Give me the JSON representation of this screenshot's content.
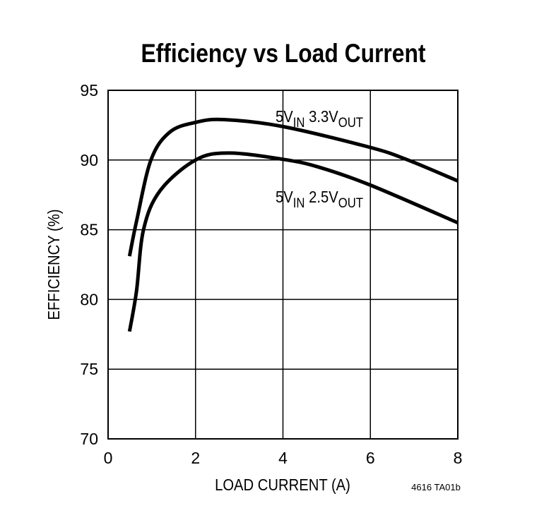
{
  "chart_data": {
    "type": "line",
    "title": "Efficiency vs Load Current",
    "xlabel": "LOAD CURRENT (A)",
    "ylabel": "EFFICIENCY (%)",
    "xlim": [
      0,
      8
    ],
    "ylim": [
      70,
      95
    ],
    "xticks": [
      "0",
      "2",
      "4",
      "6",
      "8"
    ],
    "yticks": [
      "70",
      "75",
      "80",
      "85",
      "90",
      "95"
    ],
    "grid": true,
    "series": [
      {
        "name": "5V_IN 3.3V_OUT",
        "label": {
          "main1": "5V",
          "sub1": "IN",
          "main2": " 3.3V",
          "sub2": "OUT"
        },
        "x": [
          0.49,
          0.65,
          0.98,
          1.41,
          2.0,
          2.65,
          4.0,
          6.0,
          6.86,
          8.0
        ],
        "y": [
          83.1,
          85.6,
          90.0,
          92.0,
          92.7,
          92.9,
          92.4,
          90.9,
          90.0,
          88.5
        ]
      },
      {
        "name": "5V_IN 2.5V_OUT",
        "label": {
          "main1": "5V",
          "sub1": "IN",
          "main2": " 2.5V",
          "sub2": "OUT"
        },
        "x": [
          0.49,
          0.65,
          0.81,
          1.19,
          2.0,
          2.76,
          4.0,
          4.81,
          6.0,
          8.0
        ],
        "y": [
          77.7,
          80.6,
          85.0,
          87.8,
          90.0,
          90.5,
          90.05,
          89.5,
          88.2,
          85.5
        ]
      }
    ],
    "footnote": "4616 TA01b",
    "line_color": "#000000"
  }
}
